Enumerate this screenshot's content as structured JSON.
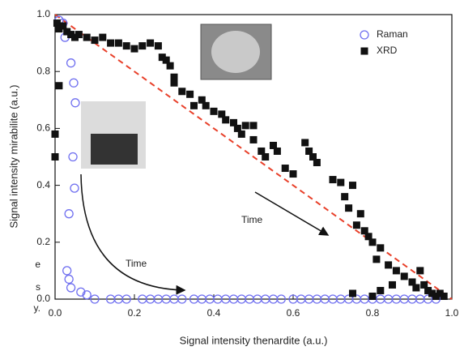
{
  "chart_data": {
    "type": "scatter",
    "xlabel": "Signal intensity thenardite (a.u.)",
    "ylabel": "Signal intensity mirabilite (a.u.)",
    "xlim": [
      0,
      1
    ],
    "ylim": [
      0,
      1
    ],
    "xticks": [
      {
        "value": 0,
        "label": "0.0"
      },
      0.2,
      0.4,
      0.6,
      0.8,
      {
        "value": 1,
        "label": "1.0"
      }
    ],
    "yticks": [
      {
        "value": 0,
        "label": "0.0"
      },
      0.2,
      0.4,
      0.6,
      0.8,
      {
        "value": 1,
        "label": "1.0"
      }
    ],
    "legend": "upper right",
    "annotations": [
      "Time",
      "Time"
    ],
    "side_text": [
      "e",
      "s",
      "y."
    ],
    "trend": {
      "x": [
        0,
        1
      ],
      "y": [
        1,
        0
      ],
      "color": "#e8402a"
    },
    "series": [
      {
        "name": "Raman",
        "color": "#6f6ff0",
        "marker": "circle",
        "x": [
          0.01,
          0.02,
          0.025,
          0.04,
          0.047,
          0.051,
          0.045,
          0.049,
          0.035,
          0.03,
          0.035,
          0.04,
          0.065,
          0.08,
          0.1,
          0.14,
          0.16,
          0.18,
          0.22,
          0.24,
          0.26,
          0.28,
          0.3,
          0.32,
          0.35,
          0.37,
          0.39,
          0.41,
          0.43,
          0.45,
          0.47,
          0.49,
          0.51,
          0.53,
          0.55,
          0.57,
          0.6,
          0.62,
          0.64,
          0.66,
          0.68,
          0.7,
          0.72,
          0.74,
          0.76,
          0.78,
          0.8,
          0.82,
          0.84,
          0.86,
          0.88,
          0.9,
          0.92,
          0.94,
          0.96
        ],
        "values": [
          0.98,
          0.97,
          0.92,
          0.83,
          0.76,
          0.69,
          0.5,
          0.39,
          0.3,
          0.1,
          0.07,
          0.04,
          0.025,
          0.015,
          0,
          0,
          0,
          0,
          0,
          0,
          0,
          0,
          0,
          0,
          0,
          0,
          0,
          0,
          0,
          0,
          0,
          0,
          0,
          0,
          0,
          0,
          0,
          0,
          0,
          0,
          0,
          0,
          0,
          0,
          0,
          0,
          0,
          0,
          0,
          0,
          0,
          0,
          0,
          0,
          0
        ]
      },
      {
        "name": "XRD",
        "color": "#111111",
        "marker": "square",
        "x": [
          0,
          0,
          0.01,
          0.005,
          0.01,
          0.02,
          0.03,
          0.04,
          0.05,
          0.06,
          0.08,
          0.1,
          0.12,
          0.14,
          0.16,
          0.18,
          0.2,
          0.22,
          0.24,
          0.26,
          0.27,
          0.28,
          0.29,
          0.3,
          0.3,
          0.32,
          0.34,
          0.35,
          0.37,
          0.38,
          0.4,
          0.42,
          0.43,
          0.45,
          0.46,
          0.47,
          0.48,
          0.5,
          0.5,
          0.52,
          0.53,
          0.55,
          0.56,
          0.58,
          0.6,
          0.63,
          0.64,
          0.65,
          0.66,
          0.7,
          0.72,
          0.73,
          0.74,
          0.75,
          0.76,
          0.77,
          0.78,
          0.79,
          0.8,
          0.81,
          0.82,
          0.84,
          0.86,
          0.88,
          0.9,
          0.91,
          0.92,
          0.93,
          0.94,
          0.95,
          0.96,
          0.97,
          0.98,
          0.8,
          0.75,
          0.82,
          0.85
        ],
        "values": [
          0.58,
          0.5,
          0.75,
          0.97,
          0.95,
          0.96,
          0.94,
          0.93,
          0.92,
          0.93,
          0.92,
          0.91,
          0.92,
          0.9,
          0.9,
          0.89,
          0.88,
          0.89,
          0.9,
          0.89,
          0.85,
          0.84,
          0.82,
          0.78,
          0.76,
          0.73,
          0.72,
          0.68,
          0.7,
          0.68,
          0.66,
          0.65,
          0.63,
          0.62,
          0.6,
          0.58,
          0.61,
          0.61,
          0.56,
          0.52,
          0.5,
          0.54,
          0.52,
          0.46,
          0.44,
          0.55,
          0.52,
          0.5,
          0.48,
          0.42,
          0.41,
          0.36,
          0.32,
          0.4,
          0.26,
          0.3,
          0.24,
          0.22,
          0.2,
          0.14,
          0.18,
          0.12,
          0.1,
          0.08,
          0.06,
          0.04,
          0.1,
          0.05,
          0.03,
          0.02,
          0.01,
          0.02,
          0.01,
          0.01,
          0.02,
          0.03,
          0.05
        ]
      }
    ]
  }
}
